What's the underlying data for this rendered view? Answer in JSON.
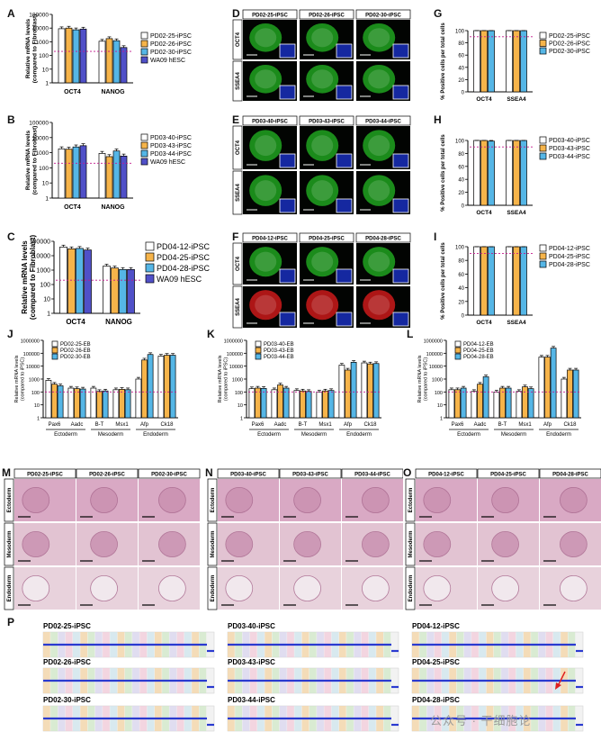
{
  "colors": {
    "white": "#ffffff",
    "orange": "#f6b44a",
    "blue": "#55b6e6",
    "purple": "#5050c8",
    "ref": "#c2188c",
    "green": "#1e9a1e",
    "red": "#c01818",
    "nucleus": "#1528a0"
  },
  "panels": {
    "A": {
      "label": "A",
      "ylabel1": "Relative mRNA levels",
      "ylabel2": "(compared to Fibroblast)",
      "ticks": [
        "100000",
        "10000",
        "1000",
        "100",
        "10",
        "1"
      ],
      "groups": [
        "OCT4",
        "NANOG"
      ],
      "legend": [
        "PD02-25-iPSC",
        "PD02-26-iPSC",
        "PD02-30-iPSC",
        "WA09 hESC"
      ]
    },
    "B": {
      "label": "B",
      "ylabel1": "Relative mRNA levels",
      "ylabel2": "(compared to Fibroblast)",
      "ticks": [
        "100000",
        "10000",
        "1000",
        "100",
        "10",
        "1"
      ],
      "groups": [
        "OCT4",
        "NANOG"
      ],
      "legend": [
        "PD03-40-iPSC",
        "PD03-43-iPSC",
        "PD03-44-iPSC",
        "WA09 hESC"
      ]
    },
    "C": {
      "label": "C",
      "ylabel1": "Relative mRNA levels",
      "ylabel2": "(compared to Fibroblast)",
      "ticks": [
        "100000",
        "10000",
        "1000",
        "100",
        "10",
        "1"
      ],
      "groups": [
        "OCT4",
        "NANOG"
      ],
      "legend": [
        "PD04-12-iPSC",
        "PD04-25-iPSC",
        "PD04-28-iPSC",
        "WA09 hESC"
      ]
    },
    "G": {
      "label": "G",
      "ylabel": "% Positive cells per total cells",
      "ticks": [
        "100",
        "80",
        "60",
        "40",
        "20",
        "0"
      ],
      "groups": [
        "OCT4",
        "SSEA4"
      ],
      "legend": [
        "PD02-25-iPSC",
        "PD02-26-iPSC",
        "PD02-30-iPSC"
      ]
    },
    "H": {
      "label": "H",
      "ylabel": "% Positive cells per total cells",
      "ticks": [
        "100",
        "80",
        "60",
        "40",
        "20",
        "0"
      ],
      "groups": [
        "OCT4",
        "SSEA4"
      ],
      "legend": [
        "PD03-40-iPSC",
        "PD03-43-iPSC",
        "PD03-44-iPSC"
      ]
    },
    "I": {
      "label": "I",
      "ylabel": "% Positive cells per total cells",
      "ticks": [
        "100",
        "80",
        "60",
        "40",
        "20",
        "0"
      ],
      "groups": [
        "OCT4",
        "SSEA4"
      ],
      "legend": [
        "PD04-12-iPSC",
        "PD04-25-iPSC",
        "PD04-28-iPSC"
      ]
    },
    "J": {
      "label": "J",
      "ylabel1": "Relative mRNA levels",
      "ylabel2": "(compared to iPSC)",
      "ticks": [
        "1000000",
        "100000",
        "10000",
        "1000",
        "100",
        "10",
        "1"
      ],
      "genes": [
        "Pax6",
        "Aadc",
        "B-T",
        "Msx1",
        "Afp",
        "Ck18"
      ],
      "layers": [
        "Ectoderm",
        "Mesoderm",
        "Endoderm"
      ],
      "legend": [
        "PD02-25-EB",
        "PD02-26-EB",
        "PD02-30-EB"
      ]
    },
    "K": {
      "label": "K",
      "ylabel1": "Relative mRNA levels",
      "ylabel2": "(compared to iPSC)",
      "ticks": [
        "1000000",
        "100000",
        "10000",
        "1000",
        "100",
        "10",
        "1"
      ],
      "genes": [
        "Pax6",
        "Aadc",
        "B-T",
        "Msx1",
        "Afp",
        "Ck18"
      ],
      "layers": [
        "Ectoderm",
        "Mesoderm",
        "Endoderm"
      ],
      "legend": [
        "PD03-40-EB",
        "PD03-43-EB",
        "PD03-44-EB"
      ]
    },
    "L": {
      "label": "L",
      "ylabel1": "Relative mRNA levels",
      "ylabel2": "(compared to iPSC)",
      "ticks": [
        "1000000",
        "100000",
        "10000",
        "1000",
        "100",
        "10",
        "1"
      ],
      "genes": [
        "Pax6",
        "Aadc",
        "B-T",
        "Msx1",
        "Afp",
        "Ck18"
      ],
      "layers": [
        "Ectoderm",
        "Mesoderm",
        "Endoderm"
      ],
      "legend": [
        "PD04-12-EB",
        "PD04-25-EB",
        "PD04-28-EB"
      ]
    },
    "D": {
      "label": "D",
      "lines": [
        "PD02-25-iPSC",
        "PD02-26-iPSC",
        "PD02-30-iPSC"
      ],
      "rows": [
        "OCT4",
        "SSEA4"
      ]
    },
    "E": {
      "label": "E",
      "lines": [
        "PD03-40-iPSC",
        "PD03-43-iPSC",
        "PD03-44-iPSC"
      ],
      "rows": [
        "OCT4",
        "SSEA4"
      ]
    },
    "F": {
      "label": "F",
      "lines": [
        "PD04-12-iPSC",
        "PD04-25-iPSC",
        "PD04-28-iPSC"
      ],
      "rows": [
        "OCT4",
        "SSEA4"
      ]
    },
    "M": {
      "label": "M",
      "lines": [
        "PD02-25-iPSC",
        "PD02-26-iPSC",
        "PD02-30-iPSC"
      ],
      "rows": [
        "Ectoderm",
        "Mesoderm",
        "Endoderm"
      ]
    },
    "N": {
      "label": "N",
      "lines": [
        "PD03-40-iPSC",
        "PD03-43-iPSC",
        "PD03-44-iPSC"
      ],
      "rows": [
        "Ectoderm",
        "Mesoderm",
        "Endoderm"
      ]
    },
    "O": {
      "label": "O",
      "lines": [
        "PD04-12-iPSC",
        "PD04-25-iPSC",
        "PD04-28-iPSC"
      ],
      "rows": [
        "Ectoderm",
        "Mesoderm",
        "Endoderm"
      ]
    },
    "P": {
      "label": "P",
      "lines": [
        "PD02-25-iPSC",
        "PD03-40-iPSC",
        "PD04-12-iPSC",
        "PD02-26-iPSC",
        "PD03-43-iPSC",
        "PD04-25-iPSC",
        "PD02-30-iPSC",
        "PD03-44-iPSC",
        "PD04-28-iPSC"
      ]
    }
  },
  "watermark": "公众号 · 干细胞论",
  "chart_data": [
    {
      "panel": "A",
      "type": "bar",
      "log": true,
      "ylim": [
        1,
        100000
      ],
      "categories": [
        "OCT4",
        "NANOG"
      ],
      "reference_line": 200,
      "series": [
        {
          "name": "PD02-25-iPSC",
          "values": [
            9000,
            1100
          ]
        },
        {
          "name": "PD02-26-iPSC",
          "values": [
            10000,
            1700
          ]
        },
        {
          "name": "PD02-30-iPSC",
          "values": [
            7500,
            1200
          ]
        },
        {
          "name": "WA09 hESC",
          "values": [
            8500,
            380
          ]
        }
      ]
    },
    {
      "panel": "B",
      "type": "bar",
      "log": true,
      "ylim": [
        1,
        100000
      ],
      "categories": [
        "OCT4",
        "NANOG"
      ],
      "reference_line": 200,
      "series": [
        {
          "name": "PD03-40-iPSC",
          "values": [
            1800,
            900
          ]
        },
        {
          "name": "PD03-43-iPSC",
          "values": [
            1700,
            550
          ]
        },
        {
          "name": "PD03-44-iPSC",
          "values": [
            2400,
            1300
          ]
        },
        {
          "name": "WA09 hESC",
          "values": [
            2900,
            600
          ]
        }
      ]
    },
    {
      "panel": "C",
      "type": "bar",
      "log": true,
      "ylim": [
        1,
        100000
      ],
      "categories": [
        "OCT4",
        "NANOG"
      ],
      "reference_line": 200,
      "series": [
        {
          "name": "PD04-12-iPSC",
          "values": [
            40000,
            1900
          ]
        },
        {
          "name": "PD04-25-iPSC",
          "values": [
            30000,
            1400
          ]
        },
        {
          "name": "PD04-28-iPSC",
          "values": [
            32000,
            1100
          ]
        },
        {
          "name": "WA09 hESC",
          "values": [
            25000,
            1100
          ]
        }
      ]
    },
    {
      "panel": "G",
      "type": "bar",
      "ylim": [
        0,
        100
      ],
      "categories": [
        "OCT4",
        "SSEA4"
      ],
      "reference_line": 90,
      "series": [
        {
          "name": "PD02-25-iPSC",
          "values": [
            100,
            100
          ]
        },
        {
          "name": "PD02-26-iPSC",
          "values": [
            100,
            100
          ]
        },
        {
          "name": "PD02-30-iPSC",
          "values": [
            100,
            100
          ]
        }
      ]
    },
    {
      "panel": "H",
      "type": "bar",
      "ylim": [
        0,
        100
      ],
      "categories": [
        "OCT4",
        "SSEA4"
      ],
      "reference_line": 90,
      "series": [
        {
          "name": "PD03-40-iPSC",
          "values": [
            100,
            100
          ]
        },
        {
          "name": "PD03-43-iPSC",
          "values": [
            100,
            100
          ]
        },
        {
          "name": "PD03-44-iPSC",
          "values": [
            99,
            100
          ]
        }
      ]
    },
    {
      "panel": "I",
      "type": "bar",
      "ylim": [
        0,
        100
      ],
      "categories": [
        "OCT4",
        "SSEA4"
      ],
      "reference_line": 90,
      "series": [
        {
          "name": "PD04-12-iPSC",
          "values": [
            100,
            100
          ]
        },
        {
          "name": "PD04-25-iPSC",
          "values": [
            100,
            100
          ]
        },
        {
          "name": "PD04-28-iPSC",
          "values": [
            100,
            100
          ]
        }
      ]
    },
    {
      "panel": "J",
      "type": "bar",
      "log": true,
      "ylim": [
        1,
        1000000
      ],
      "categories": [
        "Pax6",
        "Aadc",
        "B-T",
        "Msx1",
        "Afp",
        "Ck18"
      ],
      "reference_line": 100,
      "series": [
        {
          "name": "PD02-25-EB",
          "values": [
            800,
            200,
            200,
            150,
            1000,
            60000
          ]
        },
        {
          "name": "PD02-26-EB",
          "values": [
            400,
            180,
            110,
            160,
            30000,
            70000
          ]
        },
        {
          "name": "PD02-30-EB",
          "values": [
            300,
            170,
            120,
            150,
            80000,
            70000
          ]
        }
      ]
    },
    {
      "panel": "K",
      "type": "bar",
      "log": true,
      "ylim": [
        1,
        1000000
      ],
      "categories": [
        "Pax6",
        "Aadc",
        "B-T",
        "Msx1",
        "Afp",
        "Ck18"
      ],
      "reference_line": 100,
      "series": [
        {
          "name": "PD03-40-EB",
          "values": [
            180,
            150,
            130,
            100,
            12000,
            18000
          ]
        },
        {
          "name": "PD03-43-EB",
          "values": [
            200,
            350,
            120,
            120,
            5000,
            15000
          ]
        },
        {
          "name": "PD03-44-EB",
          "values": [
            190,
            200,
            110,
            130,
            20000,
            16000
          ]
        }
      ]
    },
    {
      "panel": "L",
      "type": "bar",
      "log": true,
      "ylim": [
        1,
        1000000
      ],
      "categories": [
        "Pax6",
        "Aadc",
        "B-T",
        "Msx1",
        "Afp",
        "Ck18"
      ],
      "reference_line": 100,
      "series": [
        {
          "name": "PD04-12-EB",
          "values": [
            150,
            110,
            100,
            110,
            50000,
            1000
          ]
        },
        {
          "name": "PD04-25-EB",
          "values": [
            150,
            400,
            200,
            250,
            50000,
            5000
          ]
        },
        {
          "name": "PD04-28-EB",
          "values": [
            200,
            1500,
            200,
            180,
            250000,
            5000
          ]
        }
      ]
    }
  ]
}
